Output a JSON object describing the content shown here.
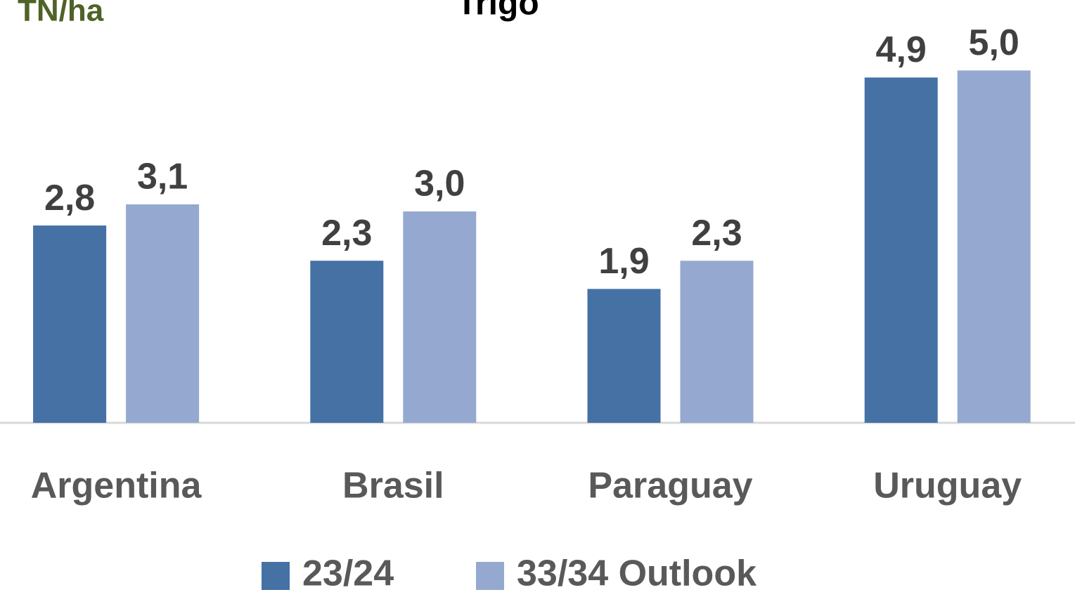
{
  "chart_data": {
    "type": "bar",
    "title": "Trigo",
    "y_label": "TN/ha",
    "categories": [
      "Argentina",
      "Brasil",
      "Paraguay",
      "Uruguay"
    ],
    "series": [
      {
        "name": "23/24",
        "color": "#4571a5",
        "values": [
          2.8,
          2.3,
          1.9,
          4.9
        ],
        "value_labels": [
          "2,8",
          "2,3",
          "1,9",
          "4,9"
        ]
      },
      {
        "name": "33/34 Outlook",
        "color": "#95a9d0",
        "values": [
          3.1,
          3.0,
          2.3,
          5.0
        ],
        "value_labels": [
          "3,1",
          "3,0",
          "2,3",
          "5,0"
        ]
      }
    ],
    "ylim": [
      0,
      6
    ],
    "legend": "bottom"
  }
}
